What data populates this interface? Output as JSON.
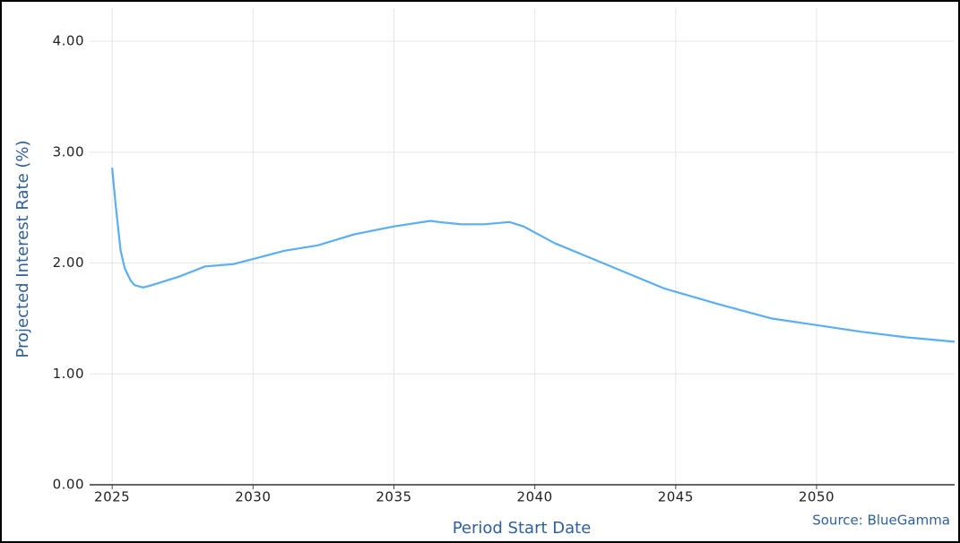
{
  "chart_data": {
    "type": "line",
    "y_label": "Projected Interest Rate (%)",
    "x_label": "Period Start Date",
    "source": "Source: BlueGamma",
    "x": [
      2025.0,
      2025.13,
      2025.3,
      2025.45,
      2025.66,
      2025.8,
      2026.1,
      2026.4,
      2027.4,
      2028.3,
      2029.3,
      2030.2,
      2031.1,
      2032.3,
      2033.6,
      2035.0,
      2036.3,
      2036.6,
      2037.4,
      2038.2,
      2039.1,
      2039.6,
      2040.7,
      2042.6,
      2044.6,
      2046.5,
      2048.4,
      2050.0,
      2051.6,
      2053.2,
      2054.9
    ],
    "series": [
      {
        "color": "#5aaef4",
        "values": [
          2.86,
          2.51,
          2.11,
          1.95,
          1.84,
          1.8,
          1.78,
          1.8,
          1.88,
          1.97,
          1.99,
          2.05,
          2.11,
          2.16,
          2.26,
          2.33,
          2.38,
          2.37,
          2.35,
          2.35,
          2.37,
          2.33,
          2.18,
          1.98,
          1.77,
          1.63,
          1.5,
          1.44,
          1.38,
          1.33,
          1.29
        ]
      }
    ],
    "xlim": [
      2024.2,
      2054.9
    ],
    "xticks": [
      2025,
      2030,
      2035,
      2040,
      2045,
      2050
    ],
    "ylim": [
      0,
      4.3
    ],
    "yticks": [
      {
        "value": 0,
        "label": "0.00"
      },
      {
        "value": 1,
        "label": "1.00"
      },
      {
        "value": 2,
        "label": "2.00"
      },
      {
        "value": 3,
        "label": "3.00"
      },
      {
        "value": 4,
        "label": "4.00"
      }
    ],
    "grid": true
  }
}
